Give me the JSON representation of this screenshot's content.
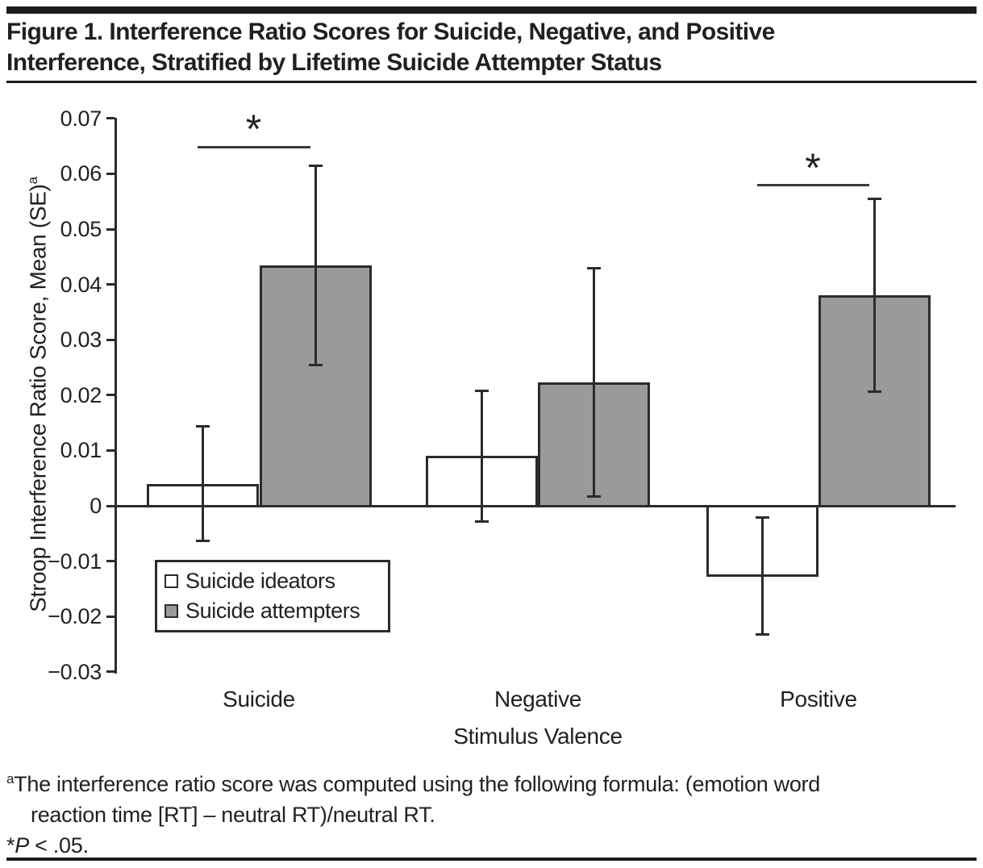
{
  "figure": {
    "title_line1": "Figure 1. Interference Ratio Scores for Suicide, Negative, and Positive",
    "title_line2": "Interference, Stratified by Lifetime Suicide Attempter Status",
    "footnote_marker": "a",
    "footnote_line1": "The interference ratio score was computed using the following formula: (emotion word",
    "footnote_line2": "reaction time [RT] – neutral RT)/neutral RT.",
    "pnote": {
      "asterisk": "*",
      "p": "P",
      "rest": " < .05."
    }
  },
  "chart_data": {
    "type": "bar",
    "title": "",
    "xlabel": "Stimulus Valence",
    "ylabel": "Stroop Interference Ratio Score, Mean (SE)",
    "ylabel_superscript": "a",
    "categories": [
      "Suicide",
      "Negative",
      "Positive"
    ],
    "series": [
      {
        "name": "Suicide ideators",
        "fill": "#ffffff",
        "values": [
          0.004,
          0.009,
          -0.0127
        ],
        "se": [
          0.0104,
          0.0118,
          0.0106
        ]
      },
      {
        "name": "Suicide attempters",
        "fill": "#9a9a9a",
        "values": [
          0.0435,
          0.0223,
          0.038
        ],
        "se": [
          0.018,
          0.0206,
          0.0174
        ]
      }
    ],
    "ylim": [
      -0.03,
      0.07
    ],
    "yticks": [
      {
        "v": 0.07,
        "label": "0.07"
      },
      {
        "v": 0.06,
        "label": "0.06"
      },
      {
        "v": 0.05,
        "label": "0.05"
      },
      {
        "v": 0.04,
        "label": "0.04"
      },
      {
        "v": 0.03,
        "label": "0.03"
      },
      {
        "v": 0.02,
        "label": "0.02"
      },
      {
        "v": 0.01,
        "label": "0.01"
      },
      {
        "v": 0,
        "label": "0"
      },
      {
        "v": -0.01,
        "label": "−0.01"
      },
      {
        "v": -0.02,
        "label": "−0.02"
      },
      {
        "v": -0.03,
        "label": "−0.03"
      }
    ],
    "significance": [
      {
        "category_index": 0,
        "label": "*",
        "line_y": 0.0648
      },
      {
        "category_index": 2,
        "label": "*",
        "line_y": 0.0579
      }
    ],
    "grid": false,
    "legend_position": "inside-lower-left"
  }
}
